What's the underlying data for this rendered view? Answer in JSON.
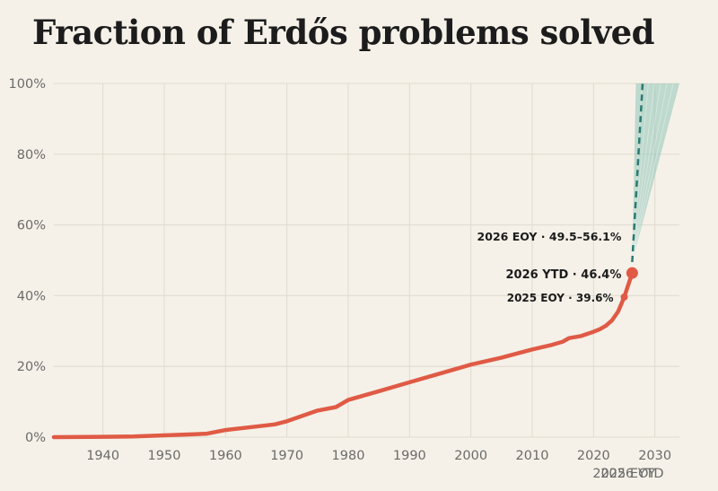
{
  "title": "Fraction of Erdős problems solved",
  "colors": {
    "background": "#f5f1e8",
    "line": "#e05a45",
    "projection": "#2a7a72",
    "band": "#8fc4b7",
    "grid": "#dedad0",
    "tick_text": "#6b6b6b"
  },
  "chart_data": {
    "type": "line",
    "title": "Fraction of Erdős problems solved",
    "xlabel": "",
    "ylabel": "",
    "xlim": [
      1932,
      2034
    ],
    "ylim": [
      0,
      100
    ],
    "x_ticks": [
      1940,
      1950,
      1960,
      1970,
      1980,
      1990,
      2000,
      2010,
      2020,
      2030
    ],
    "x_tick_labels": [
      "1940",
      "1950",
      "1960",
      "1970",
      "1980",
      "1990",
      "2000",
      "2010",
      "2020",
      "2030"
    ],
    "y_ticks": [
      0,
      20,
      40,
      60,
      80,
      100
    ],
    "y_tick_labels": [
      "0%",
      "20%",
      "40%",
      "60%",
      "80%",
      "100%"
    ],
    "extra_x_labels": [
      {
        "x": 2025,
        "label": "2025 EOY"
      },
      {
        "x": 2026.3,
        "label": "2026 YTD"
      }
    ],
    "grid": true,
    "series": [
      {
        "x": [
          1932,
          1940,
          1945,
          1950,
          1955,
          1957,
          1960,
          1965,
          1968,
          1970,
          1975,
          1978,
          1980,
          1985,
          1990,
          1995,
          2000,
          2005,
          2010,
          2013,
          2015,
          2016,
          2018,
          2020,
          2021,
          2022,
          2023,
          2024,
          2025,
          2026.3
        ],
        "y": [
          0,
          0.1,
          0.2,
          0.5,
          0.8,
          1.0,
          2.0,
          3.0,
          3.6,
          4.5,
          7.5,
          8.5,
          10.5,
          13.0,
          15.5,
          18.0,
          20.5,
          22.5,
          24.8,
          26.0,
          27.0,
          28.0,
          28.6,
          29.8,
          30.5,
          31.5,
          33.0,
          35.5,
          39.6,
          46.4
        ]
      }
    ],
    "projection": {
      "start": {
        "x": 2026.3,
        "y": 49.5
      },
      "end": {
        "x": 2028,
        "y": 100
      },
      "band_upper_end": {
        "x": 2026.9,
        "y": 100
      },
      "band_lower_end": {
        "x": 2034,
        "y": 100
      }
    },
    "annotations": [
      {
        "x": 2026.3,
        "y": 49.5,
        "text": "2026 EOY · 49.5–56.1%"
      },
      {
        "x": 2026.3,
        "y": 46.4,
        "text": "2026 YTD · 46.4%"
      },
      {
        "x": 2025,
        "y": 39.6,
        "text": "2025 EOY · 39.6%"
      }
    ]
  }
}
